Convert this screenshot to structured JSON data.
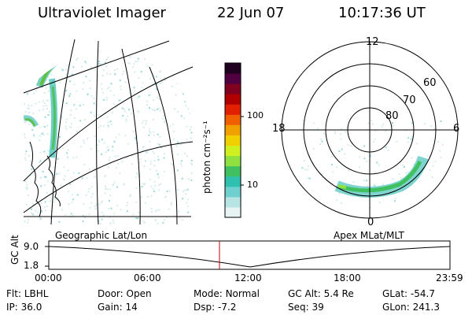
{
  "header": {
    "instrument": "Ultraviolet Imager",
    "date": "22 Jun 07",
    "time": "10:17:36 UT"
  },
  "colorbar": {
    "unit_label": "photon cm⁻²s⁻¹",
    "ticks": [
      "100",
      "10"
    ],
    "colors": [
      "#e8f4f4",
      "#b8e4e4",
      "#70d0d0",
      "#30c0b0",
      "#40c060",
      "#90e040",
      "#d0f020",
      "#f0d000",
      "#f0a000",
      "#f06000",
      "#e02000",
      "#b00000",
      "#800020",
      "#500040",
      "#200020"
    ]
  },
  "polar": {
    "ring_labels": [
      "60",
      "70",
      "80"
    ],
    "clock_labels": {
      "top": "12",
      "left": "18",
      "right": "6",
      "bottom": "0"
    }
  },
  "map_panel": {
    "caption": "Geographic Lat/Lon"
  },
  "polar_panel": {
    "caption": "Apex MLat/MLT"
  },
  "altitude_plot": {
    "axis_title": "GC Alt",
    "y_ticks": [
      "9.0",
      "1.8"
    ],
    "time_ticks": [
      "00:00",
      "06:00",
      "12:00",
      "18:00",
      "23:59"
    ],
    "marker_color": "#c00000"
  },
  "info_rows": [
    [
      {
        "label": "Flt:",
        "value": "LBHL"
      },
      {
        "label": "Door:",
        "value": "Open"
      },
      {
        "label": "Mode:",
        "value": "Normal"
      },
      {
        "label": "GC Alt:",
        "value": "5.4 Re"
      },
      {
        "label": "GLat:",
        "value": "-54.7"
      }
    ],
    [
      {
        "label": "IP:",
        "value": "36.0"
      },
      {
        "label": "Gain:",
        "value": "14"
      },
      {
        "label": "Dsp:",
        "value": "-7.2"
      },
      {
        "label": "Seq:",
        "value": "39"
      },
      {
        "label": "GLon:",
        "value": "241.3"
      }
    ]
  ]
}
